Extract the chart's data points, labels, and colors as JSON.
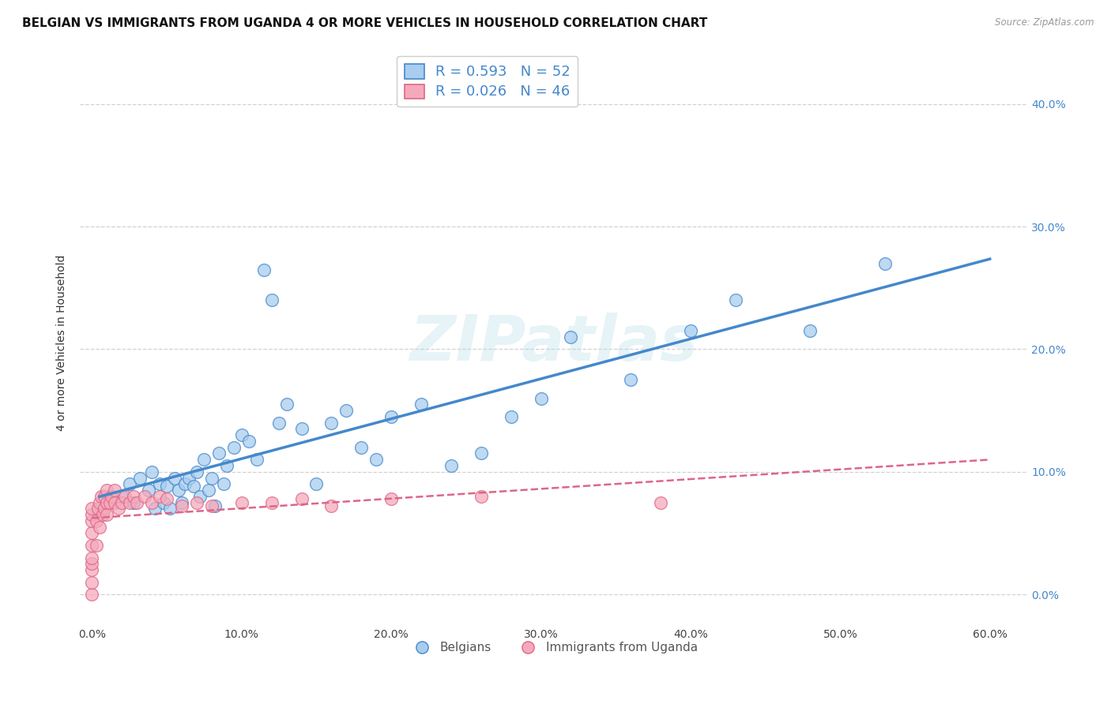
{
  "title": "BELGIAN VS IMMIGRANTS FROM UGANDA 4 OR MORE VEHICLES IN HOUSEHOLD CORRELATION CHART",
  "source": "Source: ZipAtlas.com",
  "ylabel": "4 or more Vehicles in Household",
  "xlabel_ticks": [
    "0.0%",
    "10.0%",
    "20.0%",
    "30.0%",
    "40.0%",
    "50.0%",
    "60.0%"
  ],
  "xlabel_vals": [
    0.0,
    0.1,
    0.2,
    0.3,
    0.4,
    0.5,
    0.6
  ],
  "ylabel_ticks": [
    "0.0%",
    "10.0%",
    "20.0%",
    "30.0%",
    "40.0%"
  ],
  "ylabel_vals": [
    0.0,
    0.1,
    0.2,
    0.3,
    0.4
  ],
  "xlim": [
    -0.008,
    0.625
  ],
  "ylim": [
    -0.025,
    0.435
  ],
  "belgian_R": "0.593",
  "belgian_N": "52",
  "uganda_R": "0.026",
  "uganda_N": "46",
  "belgian_color": "#A8CDEE",
  "uganda_color": "#F5AABB",
  "belgian_line_color": "#4488CC",
  "uganda_line_color": "#DD6688",
  "legend_label_belgian": "Belgians",
  "legend_label_uganda": "Immigrants from Uganda",
  "belgian_x": [
    0.02,
    0.025,
    0.028,
    0.032,
    0.038,
    0.04,
    0.042,
    0.045,
    0.048,
    0.05,
    0.052,
    0.055,
    0.058,
    0.06,
    0.062,
    0.065,
    0.068,
    0.07,
    0.072,
    0.075,
    0.078,
    0.08,
    0.082,
    0.085,
    0.088,
    0.09,
    0.095,
    0.1,
    0.105,
    0.11,
    0.115,
    0.12,
    0.125,
    0.13,
    0.14,
    0.15,
    0.16,
    0.17,
    0.18,
    0.19,
    0.2,
    0.22,
    0.24,
    0.26,
    0.28,
    0.3,
    0.32,
    0.36,
    0.4,
    0.43,
    0.48,
    0.53
  ],
  "belgian_y": [
    0.08,
    0.09,
    0.075,
    0.095,
    0.085,
    0.1,
    0.07,
    0.09,
    0.075,
    0.088,
    0.07,
    0.095,
    0.085,
    0.075,
    0.09,
    0.095,
    0.088,
    0.1,
    0.08,
    0.11,
    0.085,
    0.095,
    0.072,
    0.115,
    0.09,
    0.105,
    0.12,
    0.13,
    0.125,
    0.11,
    0.265,
    0.24,
    0.14,
    0.155,
    0.135,
    0.09,
    0.14,
    0.15,
    0.12,
    0.11,
    0.145,
    0.155,
    0.105,
    0.115,
    0.145,
    0.16,
    0.21,
    0.175,
    0.215,
    0.24,
    0.215,
    0.27
  ],
  "uganda_x": [
    0.0,
    0.0,
    0.0,
    0.0,
    0.0,
    0.0,
    0.0,
    0.0,
    0.0,
    0.0,
    0.003,
    0.003,
    0.004,
    0.005,
    0.005,
    0.006,
    0.007,
    0.008,
    0.008,
    0.01,
    0.01,
    0.01,
    0.012,
    0.013,
    0.015,
    0.015,
    0.018,
    0.02,
    0.022,
    0.025,
    0.028,
    0.03,
    0.035,
    0.04,
    0.045,
    0.05,
    0.06,
    0.07,
    0.08,
    0.1,
    0.12,
    0.14,
    0.16,
    0.2,
    0.26,
    0.38
  ],
  "uganda_y": [
    0.0,
    0.01,
    0.02,
    0.025,
    0.03,
    0.04,
    0.05,
    0.06,
    0.065,
    0.07,
    0.04,
    0.06,
    0.07,
    0.055,
    0.075,
    0.08,
    0.065,
    0.07,
    0.08,
    0.065,
    0.075,
    0.085,
    0.075,
    0.08,
    0.075,
    0.085,
    0.07,
    0.075,
    0.08,
    0.075,
    0.08,
    0.075,
    0.08,
    0.075,
    0.08,
    0.078,
    0.072,
    0.075,
    0.072,
    0.075,
    0.075,
    0.078,
    0.072,
    0.078,
    0.08,
    0.075
  ],
  "watermark": "ZIPatlas",
  "title_fontsize": 11,
  "axis_label_fontsize": 10,
  "tick_fontsize": 10,
  "legend_fontsize": 12
}
